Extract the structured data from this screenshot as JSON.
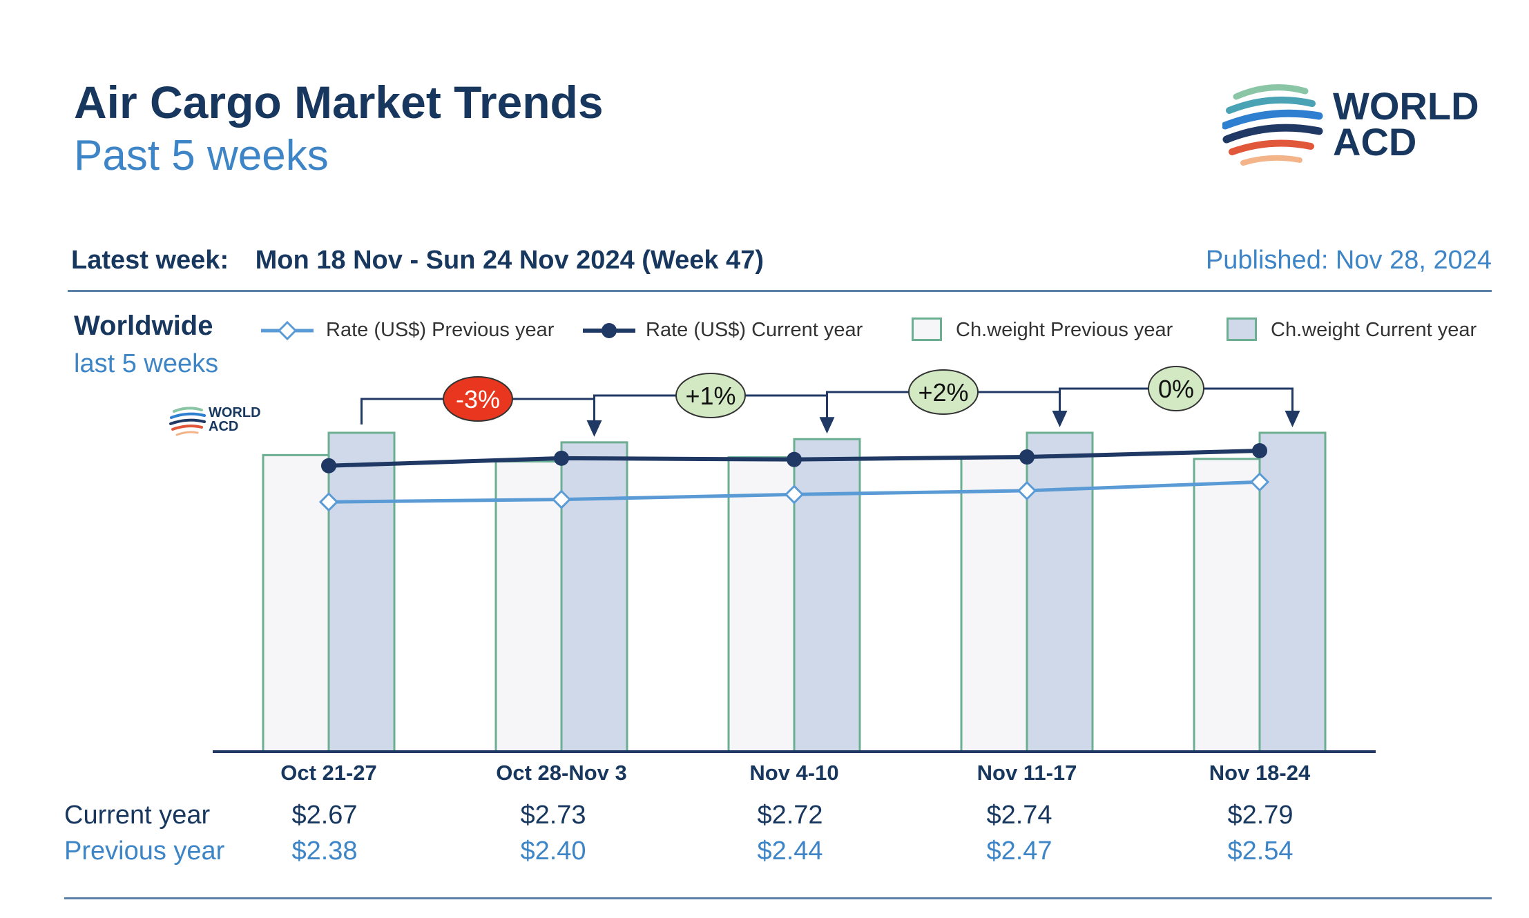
{
  "header": {
    "title": "Air Cargo Market Trends",
    "subtitle": "Past 5 weeks",
    "latest_week_label": "Latest week:",
    "latest_week_value": "Mon 18 Nov - Sun 24 Nov 2024 (Week 47)",
    "published": "Published: Nov 28, 2024"
  },
  "logo": {
    "line1": "WORLD",
    "line2": "ACD"
  },
  "region": {
    "name": "Worldwide",
    "period": "last 5 weeks"
  },
  "legend": [
    {
      "label": "Rate (US$) Previous year",
      "color": "#5b9bd5",
      "marker": "diamond"
    },
    {
      "label": "Rate (US$) Current year",
      "color": "#1f3864",
      "marker": "circle"
    },
    {
      "label": "Ch.weight Previous year",
      "color": "#f6f6f9",
      "marker": "box"
    },
    {
      "label": "Ch.weight Current year",
      "color": "#d0d9ea",
      "marker": "box"
    }
  ],
  "colors": {
    "bar_border": "#6cae92",
    "prev_bar": "#f6f6f9",
    "cur_bar": "#d0d9ea",
    "line_cur": "#1f3864",
    "line_prev": "#5b9bd5",
    "neg_badge": "#e8371e",
    "pos_badge": "#d3e9c4",
    "arrow": "#1f3864"
  },
  "chart_data": {
    "type": "bar",
    "categories": [
      "Oct 21-27",
      "Oct 28-Nov 3",
      "Nov 4-10",
      "Nov 11-17",
      "Nov 18-24"
    ],
    "series": [
      {
        "name": "Ch.weight Previous year",
        "type": "bar",
        "values": [
          0.93,
          0.91,
          0.923,
          0.92,
          0.918
        ]
      },
      {
        "name": "Ch.weight Current year",
        "type": "bar",
        "values": [
          1.0,
          0.97,
          0.98,
          1.0,
          1.0
        ]
      },
      {
        "name": "Rate (US$) Current year",
        "type": "line",
        "values": [
          2.67,
          2.73,
          2.72,
          2.74,
          2.79
        ]
      },
      {
        "name": "Rate (US$) Previous year",
        "type": "line",
        "values": [
          2.38,
          2.4,
          2.44,
          2.47,
          2.54
        ]
      }
    ],
    "week_over_week_changes": [
      {
        "label": "-3%",
        "sign": "negative"
      },
      {
        "label": "+1%",
        "sign": "positive"
      },
      {
        "label": "+2%",
        "sign": "positive"
      },
      {
        "label": "0%",
        "sign": "neutral"
      }
    ],
    "rows": {
      "current_label": "Current year",
      "previous_label": "Previous year",
      "current": [
        "$2.67",
        "$2.73",
        "$2.72",
        "$2.74",
        "$2.79"
      ],
      "previous": [
        "$2.38",
        "$2.40",
        "$2.44",
        "$2.47",
        "$2.54"
      ]
    }
  }
}
